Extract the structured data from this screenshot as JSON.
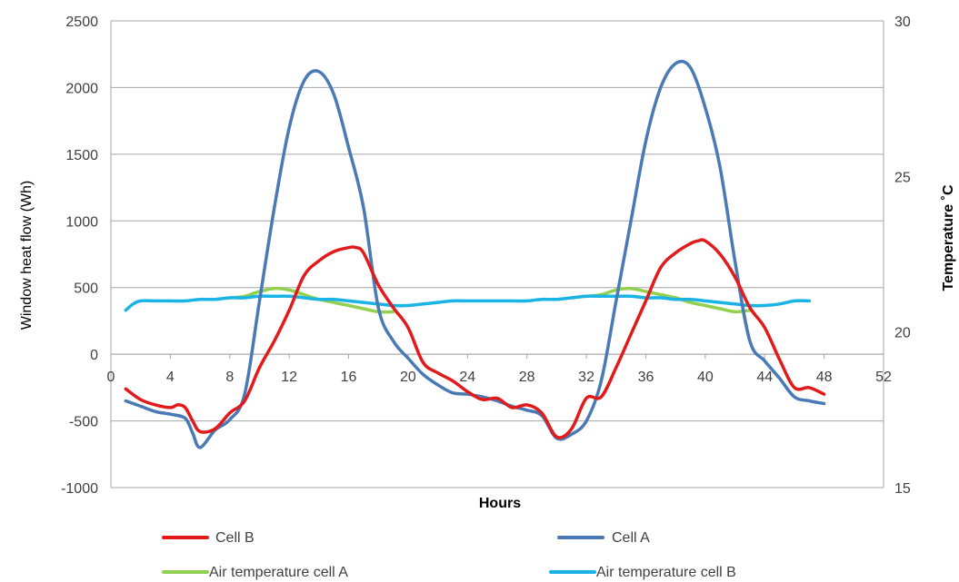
{
  "chart_data": {
    "type": "line",
    "xlabel": "Hours",
    "ylabel": "Window heat flow (Wh)",
    "y2label": "Temperature ˚C",
    "xlim": [
      0,
      52
    ],
    "ylim": [
      -1000,
      2500
    ],
    "y2lim": [
      15,
      30
    ],
    "x_ticks": [
      "0",
      "4",
      "8",
      "12",
      "16",
      "20",
      "24",
      "28",
      "32",
      "36",
      "40",
      "44",
      "48",
      "52"
    ],
    "y_ticks": [
      "-1000",
      "-500",
      "0",
      "500",
      "1000",
      "1500",
      "2000",
      "2500"
    ],
    "y2_ticks": [
      "15",
      "20",
      "25",
      "30"
    ],
    "grid": true,
    "legend_position": "bottom",
    "series": [
      {
        "name": "Cell B",
        "axis": "left",
        "color": "#e31a1c",
        "x": [
          1,
          2,
          3,
          4,
          4.5,
          5,
          5.5,
          6,
          7,
          8,
          9,
          10,
          11,
          12,
          13,
          14,
          15,
          16,
          16.5,
          17,
          18,
          19,
          20,
          21,
          22,
          23,
          24,
          25,
          26,
          27,
          28,
          29,
          30,
          31,
          32,
          33,
          34,
          35,
          36,
          37,
          38,
          39,
          39.5,
          40,
          41,
          42,
          43,
          44,
          45,
          46,
          47,
          48
        ],
        "y": [
          -260,
          -340,
          -380,
          -400,
          -380,
          -400,
          -500,
          -580,
          -560,
          -440,
          -350,
          -100,
          100,
          330,
          590,
          700,
          770,
          800,
          800,
          760,
          520,
          350,
          200,
          -60,
          -140,
          -200,
          -280,
          -340,
          -330,
          -400,
          -380,
          -440,
          -620,
          -560,
          -330,
          -320,
          -100,
          150,
          400,
          650,
          760,
          830,
          850,
          850,
          750,
          580,
          350,
          200,
          -40,
          -250,
          -250,
          -300
        ]
      },
      {
        "name": "Cell A",
        "axis": "left",
        "color": "#4a7ab6",
        "x": [
          1,
          2,
          3,
          4,
          5,
          5.5,
          6,
          7,
          8,
          9,
          10,
          11,
          12,
          13,
          14,
          15,
          16,
          17,
          18,
          19,
          20,
          21,
          22,
          23,
          24,
          25,
          26,
          27,
          28,
          29,
          30,
          31,
          32,
          33,
          34,
          35,
          36,
          37,
          38,
          39,
          40,
          41,
          42,
          43,
          44,
          45,
          46,
          47,
          48
        ],
        "y": [
          -350,
          -390,
          -430,
          -450,
          -480,
          -590,
          -700,
          -570,
          -490,
          -300,
          400,
          1100,
          1700,
          2050,
          2120,
          1950,
          1550,
          1100,
          350,
          100,
          -30,
          -150,
          -230,
          -290,
          -300,
          -320,
          -350,
          -390,
          -420,
          -460,
          -630,
          -600,
          -500,
          -200,
          400,
          1000,
          1600,
          2000,
          2180,
          2150,
          1850,
          1400,
          700,
          100,
          -50,
          -180,
          -320,
          -350,
          -370
        ]
      },
      {
        "name": "Air temperature cell A",
        "axis": "right",
        "color": "#92d050",
        "x": [
          8,
          9,
          10,
          11,
          12,
          13,
          14,
          15,
          16,
          17,
          18,
          19,
          31,
          32,
          33,
          34,
          35,
          36,
          37,
          38,
          39,
          40,
          41,
          42,
          43
        ],
        "y": [
          21.1,
          21.15,
          21.3,
          21.4,
          21.35,
          21.2,
          21.05,
          20.95,
          20.85,
          20.75,
          20.65,
          20.65,
          21.1,
          21.15,
          21.2,
          21.35,
          21.4,
          21.3,
          21.2,
          21.1,
          20.95,
          20.85,
          20.75,
          20.65,
          20.7
        ]
      },
      {
        "name": "Air temperature cell B",
        "axis": "right",
        "color": "#1ab3e6",
        "x": [
          1,
          1.5,
          2,
          3,
          4,
          5,
          6,
          7,
          8,
          9,
          10,
          11,
          12,
          13,
          14,
          15,
          16,
          17,
          18,
          19,
          20,
          21,
          22,
          23,
          24,
          25,
          26,
          27,
          28,
          29,
          30,
          31,
          32,
          33,
          34,
          35,
          36,
          37,
          38,
          39,
          40,
          41,
          42,
          43,
          44,
          45,
          46,
          47
        ],
        "y": [
          20.7,
          20.9,
          21.0,
          21.0,
          21.0,
          21.0,
          21.05,
          21.05,
          21.1,
          21.1,
          21.15,
          21.15,
          21.15,
          21.1,
          21.05,
          21.05,
          21.0,
          20.95,
          20.9,
          20.85,
          20.85,
          20.9,
          20.95,
          21.0,
          21.0,
          21.0,
          21.0,
          21.0,
          21.0,
          21.05,
          21.05,
          21.1,
          21.15,
          21.15,
          21.15,
          21.15,
          21.1,
          21.1,
          21.05,
          21.05,
          21.0,
          20.95,
          20.9,
          20.85,
          20.85,
          20.9,
          21.0,
          21.0
        ]
      }
    ]
  }
}
